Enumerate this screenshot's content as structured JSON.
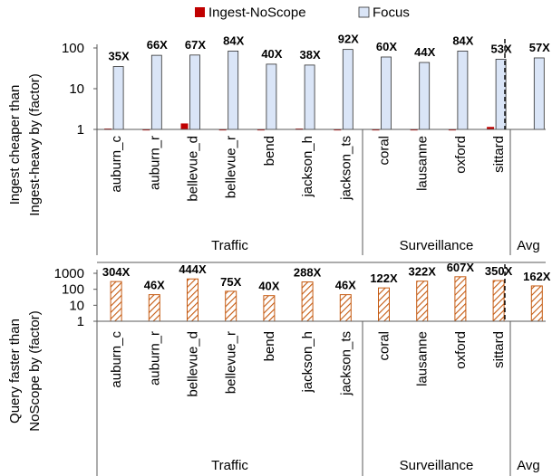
{
  "legend": [
    {
      "name": "Ingest-NoScope",
      "color": "#c00000"
    },
    {
      "name": "Focus",
      "color": "#dae5f7"
    }
  ],
  "chart_data": [
    {
      "type": "bar",
      "y_scale": "log",
      "ylabel_lines": [
        "Ingest cheaper than",
        "Ingest-heavy by (factor)"
      ],
      "yticks": [
        "1",
        "10",
        "100"
      ],
      "ylim": [
        1,
        100
      ],
      "categories": [
        "auburn_c",
        "auburn_r",
        "bellevue_d",
        "bellevue_r",
        "bend",
        "jackson_h",
        "jackson_ts",
        "coral",
        "lausanne",
        "oxford",
        "sittard",
        ""
      ],
      "groups": [
        {
          "label": "Traffic",
          "count": 7
        },
        {
          "label": "Surveillance",
          "count": 4
        },
        {
          "label": "Avg",
          "count": 1
        }
      ],
      "series": [
        {
          "name": "Ingest-NoScope",
          "values": [
            1.05,
            1.02,
            1.4,
            1.02,
            1.02,
            1.05,
            1.02,
            1.02,
            1.02,
            1.02,
            1.15,
            null
          ]
        },
        {
          "name": "Focus",
          "values": [
            35,
            66,
            67,
            84,
            40,
            38,
            92,
            60,
            44,
            84,
            53,
            57
          ]
        }
      ],
      "bar_labels": [
        "35X",
        "66X",
        "67X",
        "84X",
        "40X",
        "38X",
        "92X",
        "60X",
        "44X",
        "84X",
        "53X",
        "57X"
      ]
    },
    {
      "type": "bar",
      "y_scale": "log",
      "ylabel_lines": [
        "Query faster than",
        "NoScope by (factor)"
      ],
      "yticks": [
        "1",
        "10",
        "100",
        "1000"
      ],
      "ylim": [
        1,
        1000
      ],
      "categories": [
        "auburn_c",
        "auburn_r",
        "bellevue_d",
        "bellevue_r",
        "bend",
        "jackson_h",
        "jackson_ts",
        "coral",
        "lausanne",
        "oxford",
        "sittard",
        ""
      ],
      "groups": [
        {
          "label": "Traffic",
          "count": 7
        },
        {
          "label": "Surveillance",
          "count": 4
        },
        {
          "label": "Avg",
          "count": 1
        }
      ],
      "series": [
        {
          "name": "",
          "values": [
            304,
            46,
            444,
            75,
            40,
            288,
            46,
            122,
            322,
            607,
            350,
            162
          ]
        }
      ],
      "bar_labels": [
        "304X",
        "46X",
        "444X",
        "75X",
        "40X",
        "288X",
        "46X",
        "122X",
        "322X",
        "607X",
        "350X",
        "162X"
      ]
    }
  ]
}
